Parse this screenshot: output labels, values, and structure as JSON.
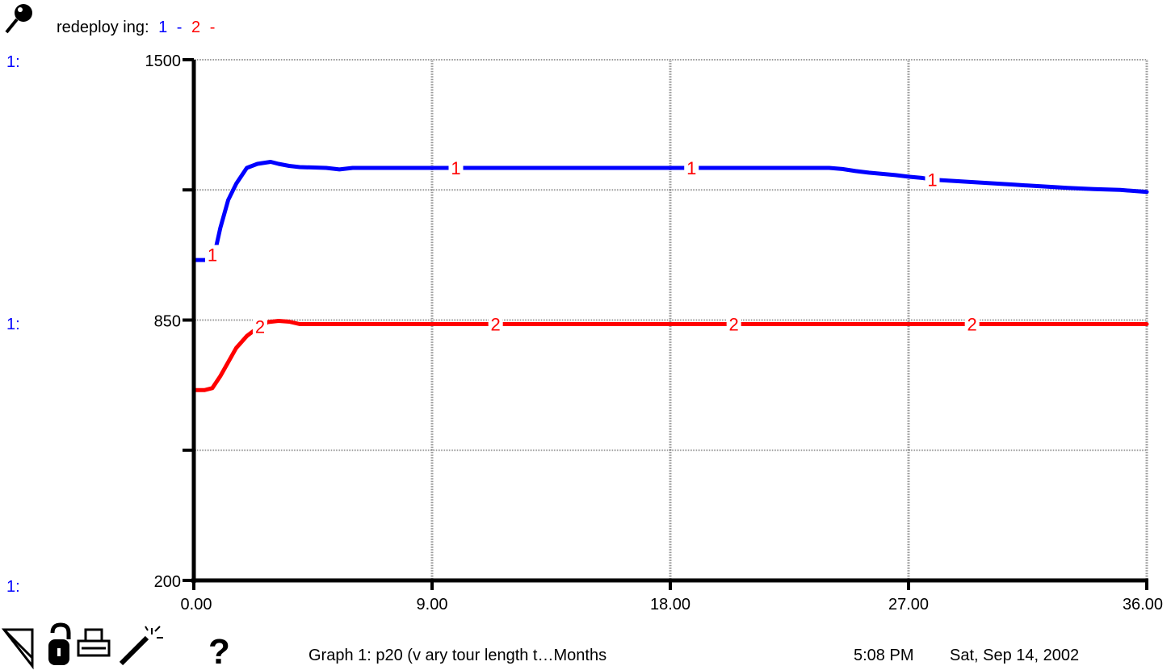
{
  "header": {
    "var_name": "redeploy ing:",
    "legend_series_1": "1",
    "legend_series_2": "2",
    "legend_sep": "-"
  },
  "footer": {
    "graph_title": "Graph 1: p20 (v ary  tour length t…Months",
    "time": "5:08 PM",
    "date": "Sat, Sep 14, 2002"
  },
  "axis_prefixes": [
    "1:",
    "1:",
    "1:"
  ],
  "icons": [
    "pin-icon",
    "arrow-icon",
    "lock-icon",
    "print-icon",
    "magic-wand-icon",
    "help-icon"
  ],
  "colors": {
    "series_1": "#0000ff",
    "series_2": "#ff0000",
    "axis": "#000000",
    "grid": "#999999"
  },
  "chart_data": {
    "type": "line",
    "xlim": [
      0,
      36
    ],
    "ylim": [
      200,
      1500
    ],
    "x_ticks": [
      "0.00",
      "9.00",
      "18.00",
      "27.00",
      "36.00"
    ],
    "y_ticks": [
      "1500",
      "850",
      "200"
    ],
    "y_tick_values": [
      1500,
      850,
      200
    ],
    "y_minor_ticks": [
      1175,
      525
    ],
    "grid": true,
    "series": [
      {
        "label": "1",
        "color": "#0000ff",
        "x": [
          0,
          0.5,
          0.8,
          1.0,
          1.3,
          1.6,
          2.0,
          2.4,
          2.9,
          3.2,
          3.6,
          4.0,
          5.0,
          5.5,
          6.0,
          10,
          15,
          20,
          24,
          24.5,
          25,
          25.5,
          26,
          26.5,
          27,
          27.5,
          28,
          29,
          30,
          31,
          32,
          33,
          34,
          35,
          36
        ],
        "y": [
          1000,
          1000,
          1020,
          1080,
          1150,
          1190,
          1230,
          1240,
          1245,
          1240,
          1235,
          1232,
          1230,
          1226,
          1230,
          1230,
          1230,
          1230,
          1230,
          1227,
          1222,
          1218,
          1215,
          1212,
          1208,
          1205,
          1200,
          1196,
          1192,
          1188,
          1184,
          1180,
          1177,
          1175,
          1170
        ],
        "labels_at_x": [
          0.7,
          9.9,
          18.8,
          27.9
        ]
      },
      {
        "label": "2",
        "color": "#ff0000",
        "x": [
          0,
          0.4,
          0.7,
          1.0,
          1.3,
          1.6,
          2.0,
          2.4,
          2.8,
          3.2,
          3.6,
          4.0,
          10,
          20,
          30,
          36
        ],
        "y": [
          675,
          675,
          680,
          710,
          745,
          780,
          810,
          830,
          845,
          848,
          846,
          840,
          840,
          840,
          840,
          840
        ],
        "labels_at_x": [
          2.5,
          11.4,
          20.4,
          29.4
        ]
      }
    ]
  }
}
